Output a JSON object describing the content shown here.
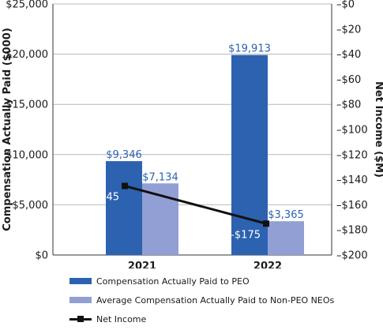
{
  "chart_data": {
    "type": "bar",
    "categories": [
      "2021",
      "2022"
    ],
    "series": [
      {
        "name": "Compensation Actually Paid to PEO",
        "values": [
          9346,
          19913
        ],
        "labels": [
          "$9,346",
          "$19,913"
        ],
        "color": "#2c62b0",
        "label_color": "#2c62b0"
      },
      {
        "name": "Average Compensation Actually Paid to Non-PEO NEOs",
        "values": [
          7134,
          3365
        ],
        "labels": [
          "$7,134",
          "$3,365"
        ],
        "color": "#929fd4",
        "label_color": "#2c62b0"
      }
    ],
    "line_series": {
      "name": "Net Income",
      "values": [
        -145,
        -175
      ],
      "labels": [
        "–$145",
        "–$175"
      ],
      "color": "#111111",
      "axis": "right"
    },
    "ylabel": "Compensation Actually Paid ($000)",
    "ylabel_right": "Net Income ($M)",
    "ylim": [
      0,
      25000
    ],
    "ylim_right": [
      -200,
      0
    ],
    "yticks": [
      "$0",
      "$5,000",
      "$10,000",
      "$15,000",
      "$20,000",
      "$25,000"
    ],
    "yticks_right": [
      "–$200",
      "–$180",
      "–$160",
      "–$140",
      "–$120",
      "–$100",
      "–$80",
      "–$60",
      "–$40",
      "–$20",
      "–$0"
    ],
    "grid": true,
    "legend_position": "bottom-left"
  },
  "legend": {
    "items": [
      {
        "label": "Compensation Actually Paid to PEO",
        "color": "#2c62b0",
        "kind": "bar"
      },
      {
        "label": "Average Compensation Actually Paid to Non-PEO NEOs",
        "color": "#929fd4",
        "kind": "bar"
      },
      {
        "label": "Net Income",
        "color": "#111111",
        "kind": "line"
      }
    ]
  }
}
